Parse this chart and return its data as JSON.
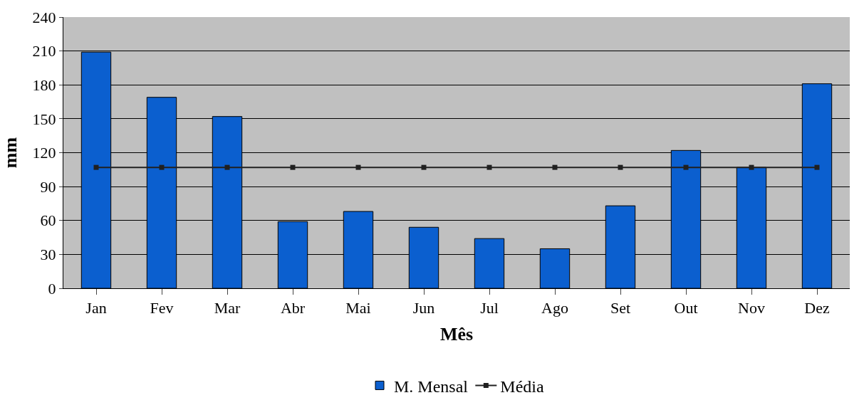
{
  "chart_data": {
    "type": "bar",
    "xlabel": "Mês",
    "ylabel": "mm",
    "categories": [
      "Jan",
      "Fev",
      "Mar",
      "Abr",
      "Mai",
      "Jun",
      "Jul",
      "Ago",
      "Set",
      "Out",
      "Nov",
      "Dez"
    ],
    "series": [
      {
        "name": "M. Mensal",
        "color": "#0b5fcf",
        "values": [
          209,
          169,
          152,
          59,
          68,
          54,
          44,
          35,
          73,
          122,
          107,
          181
        ]
      },
      {
        "name": "Média",
        "type": "line",
        "color": "#202020",
        "marker": "square",
        "values": [
          107,
          107,
          107,
          107,
          107,
          107,
          107,
          107,
          107,
          107,
          107,
          107
        ]
      }
    ],
    "ylim": [
      0,
      240
    ],
    "yticks": [
      0,
      30,
      60,
      90,
      120,
      150,
      180,
      210,
      240
    ],
    "grid": "y",
    "legend": "bottom"
  }
}
